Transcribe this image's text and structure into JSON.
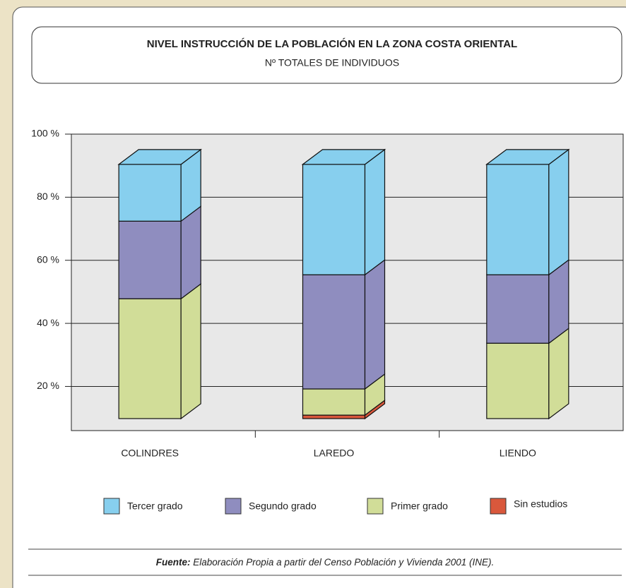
{
  "chart_data": {
    "type": "bar3d_stacked",
    "title": "NIVEL INSTRUCCIÓN DE LA POBLACIÓN EN LA ZONA COSTA ORIENTAL",
    "subtitle": "Nº TOTALES DE INDIVIDUOS",
    "categories": [
      "COLINDRES",
      "LAREDO",
      "LIENDO"
    ],
    "series": [
      {
        "name": "Tercer grado",
        "color": "#87cfee",
        "values": [
          18,
          35,
          35
        ]
      },
      {
        "name": "Segundo grado",
        "color": "#8f8dbf",
        "values": [
          24.6,
          36.2,
          21.7
        ]
      },
      {
        "name": "Primer grado",
        "color": "#d1dd98",
        "values": [
          38,
          8.3,
          23.9
        ]
      },
      {
        "name": "Sin estudios",
        "color": "#d9583c",
        "values": [
          0,
          1.1,
          0
        ]
      }
    ],
    "ylim": [
      6,
      100
    ],
    "yticks": [
      {
        "value": 20,
        "label": "20 %"
      },
      {
        "value": 40,
        "label": "40 %"
      },
      {
        "value": 60,
        "label": "60 %"
      },
      {
        "value": 80,
        "label": "80 %"
      },
      {
        "value": 100,
        "label": "100 %"
      }
    ],
    "grid": true,
    "legend": "bottom",
    "source_label": "Fuente:",
    "source": " Elaboración Propia  a partir del Censo Población y Vivienda 2001 (INE)."
  }
}
